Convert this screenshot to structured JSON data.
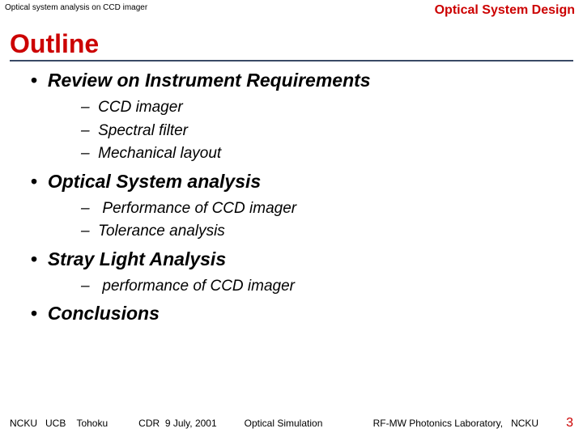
{
  "header": {
    "left": "Optical system analysis on CCD imager",
    "right": "Optical System Design"
  },
  "title": "Outline",
  "outline": {
    "items": [
      {
        "text": "Review on Instrument Requirements",
        "subs": [
          "CCD imager",
          "Spectral filter",
          "Mechanical layout"
        ]
      },
      {
        "text": "Optical System analysis",
        "subs": [
          " Performance of CCD imager",
          "Tolerance analysis"
        ]
      },
      {
        "text": "Stray Light Analysis",
        "subs": [
          " performance of CCD imager"
        ]
      },
      {
        "text": "Conclusions",
        "subs": []
      }
    ]
  },
  "footer": {
    "orgs": "NCKU   UCB    Tohoku",
    "event": "CDR  9 July, 2001",
    "sim": "Optical Simulation",
    "lab": "RF-MW Photonics Laboratory,   NCKU",
    "page": "3"
  },
  "colors": {
    "accent": "#cc0000",
    "rule": "#3a4a66",
    "text": "#000000",
    "background": "#ffffff"
  }
}
